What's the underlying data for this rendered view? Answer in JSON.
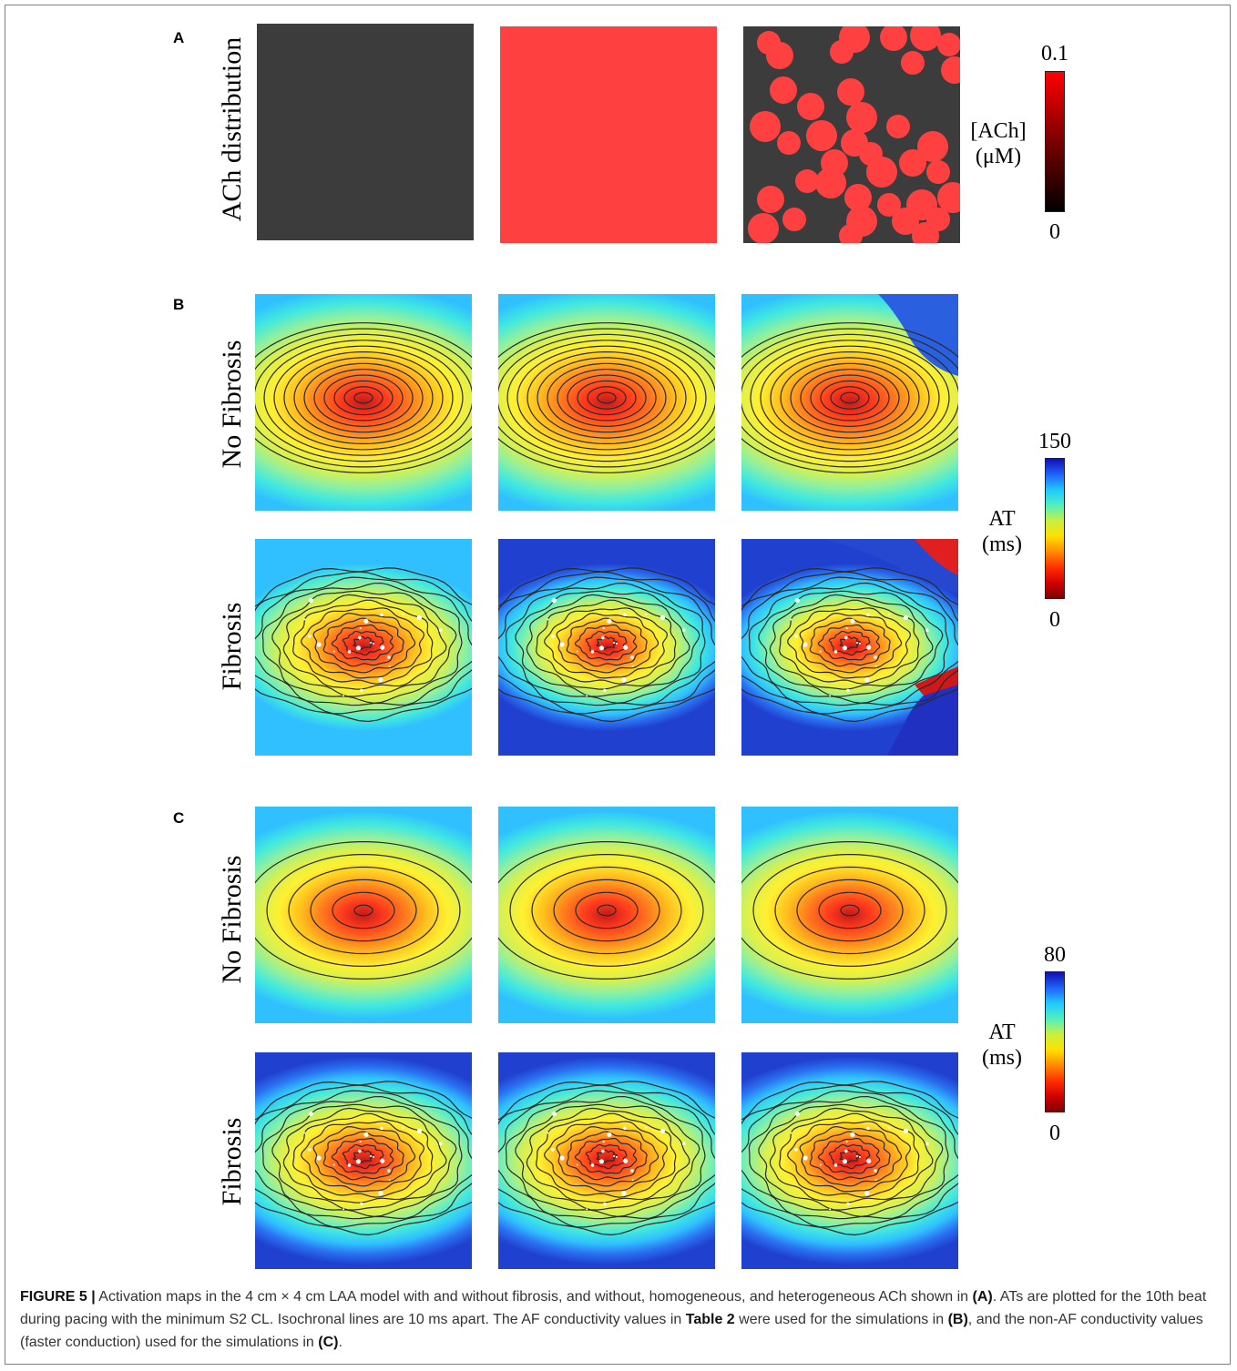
{
  "panels": {
    "A": {
      "letter": "A",
      "row_label": "ACh distribution",
      "colorbar": {
        "max": "0.1",
        "min": "0",
        "label_line1": "[ACh]",
        "label_line2": "(μM)"
      },
      "colors": {
        "none": "#3c3c3c",
        "homogeneous": "#ff4040"
      }
    },
    "B": {
      "letter": "B",
      "rows": [
        {
          "label": "No Fibrosis"
        },
        {
          "label": "Fibrosis"
        }
      ],
      "colorbar": {
        "max": "150",
        "min": "0",
        "label_line1": "AT",
        "label_line2": "(ms)"
      }
    },
    "C": {
      "letter": "C",
      "rows": [
        {
          "label": "No Fibrosis"
        },
        {
          "label": "Fibrosis"
        }
      ],
      "colorbar": {
        "max": "80",
        "min": "0",
        "label_line1": "AT",
        "label_line2": "(ms)"
      }
    }
  },
  "caption": {
    "label": "FIGURE 5 |",
    "part1": " Activation maps in the 4 cm × 4 cm LAA model with and without fibrosis, and without, homogeneous, and heterogeneous ACh shown in ",
    "ref_a": "(A)",
    "part2": ". ATs are plotted for the 10th beat during pacing with the minimum S2 CL. Isochronal lines are 10 ms apart. The AF conductivity values in ",
    "ref_table": "Table 2",
    "part3": " were used for the simulations in ",
    "ref_b": "(B)",
    "part4": ", and the non-AF conductivity values (faster conduction) used for the simulations in ",
    "ref_c": "(C)",
    "part5": "."
  }
}
